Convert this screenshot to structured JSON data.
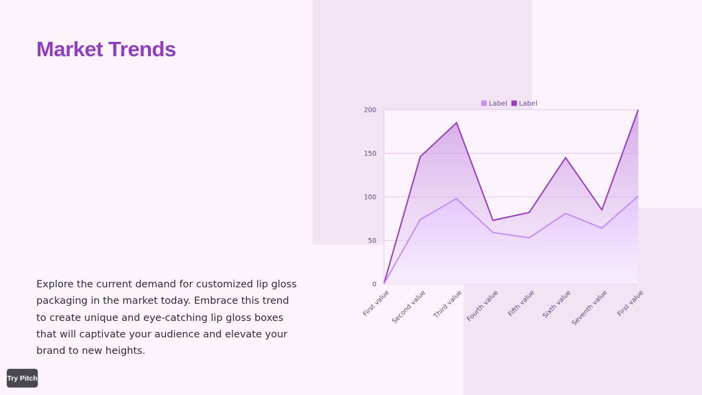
{
  "slide": {
    "title": "Market Trends",
    "body": "Explore the current demand for customized lip gloss packaging in the market today. Embrace this trend to create unique and eye-catching lip gloss boxes that will captivate your audience and elevate your brand to new heights.",
    "badge": "Try Pitch"
  },
  "colors": {
    "title": "#8f3ebd",
    "series_light": "#c48ff0",
    "series_dark": "#9a3fbb"
  },
  "chart_data": {
    "type": "area",
    "categories": [
      "First value",
      "Second value",
      "Third value",
      "Fourth value",
      "Fifth value",
      "Sixth value",
      "Seventh value",
      "First value"
    ],
    "series": [
      {
        "name": "Label",
        "color": "#c48ff0",
        "values": [
          0,
          74,
          98,
          59,
          53,
          81,
          64,
          101
        ]
      },
      {
        "name": "Label",
        "color": "#9a3fbb",
        "values": [
          0,
          146,
          185,
          73,
          82,
          145,
          85,
          200
        ]
      }
    ],
    "yticks": [
      0,
      50,
      100,
      150,
      200
    ],
    "ylim": [
      0,
      200
    ],
    "grid": true,
    "legend": "top-center"
  }
}
